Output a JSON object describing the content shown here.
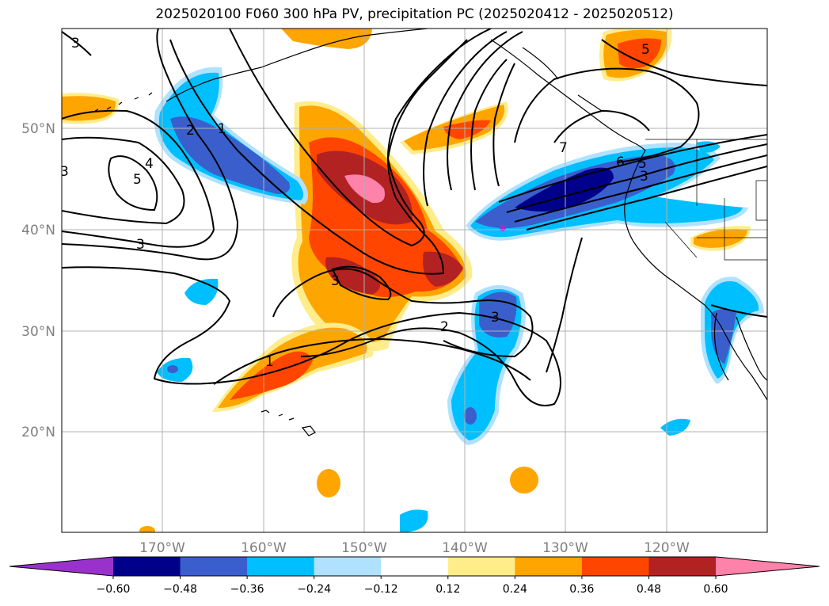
{
  "title": "2025020100 F060 300 hPa PV, precipitation PC (2025020412 - 2025020512)",
  "lat_labels": [
    "50°N",
    "40°N",
    "30°N",
    "20°N"
  ],
  "lon_labels": [
    "170°W",
    "160°W",
    "150°W",
    "140°W",
    "130°W",
    "120°W"
  ],
  "contour_labels": [
    "3",
    "2",
    "1",
    "4",
    "5",
    "3",
    "7",
    "6",
    "5",
    "3",
    "3",
    "2",
    "3",
    "1",
    "5",
    "3"
  ],
  "colorbar": {
    "ticks": [
      "−0.60",
      "−0.48",
      "−0.36",
      "−0.24",
      "−0.12",
      "0.12",
      "0.24",
      "0.36",
      "0.48",
      "0.60"
    ],
    "colors": [
      "#9932cc",
      "#00008b",
      "#3a5fcd",
      "#00bfff",
      "#b0e2ff",
      "#ffffff",
      "#ffec8b",
      "#ffa500",
      "#ff4500",
      "#b22222",
      "#ff82ab"
    ]
  },
  "colors": {
    "neg_extreme": "#9932cc",
    "neg_strong": "#00008b",
    "neg_mod": "#3a5fcd",
    "neg_weak": "#00bfff",
    "neg_faint": "#b0e2ff",
    "pos_faint": "#ffec8b",
    "pos_weak": "#ffa500",
    "pos_mod": "#ff4500",
    "pos_strong": "#b22222",
    "pos_extreme": "#ff82ab"
  }
}
